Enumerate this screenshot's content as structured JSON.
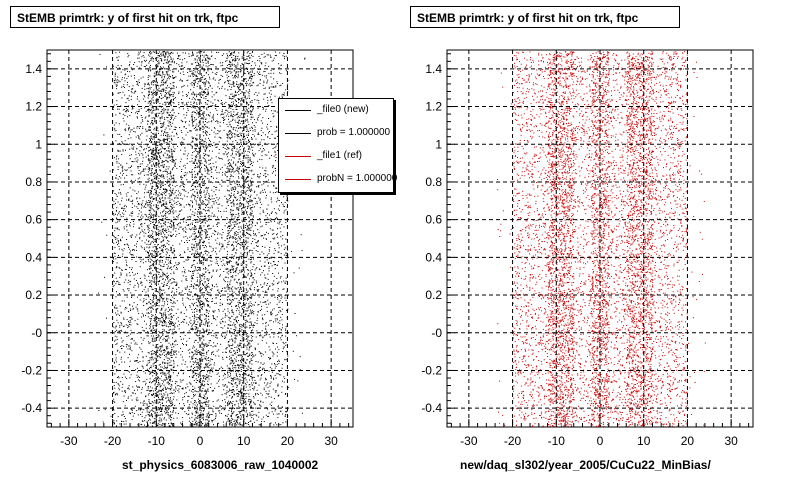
{
  "panels": {
    "left": {
      "title": "StEMB primtrk: y of first hit on trk, ftpc",
      "xlabel": "st_physics_6083006_raw_1040002",
      "color": "#000000"
    },
    "right": {
      "title": "StEMB primtrk: y of first hit on trk, ftpc",
      "xlabel": "new/daq_sl302/year_2005/CuCu22_MinBias/",
      "color": "#cc0000"
    }
  },
  "legend": {
    "entries": [
      {
        "label": "_file0 (new)",
        "color": "#000000"
      },
      {
        "label": "prob = 1.000000",
        "color": "#000000"
      },
      {
        "label": "_file1 (ref)",
        "color": "#cc0000"
      },
      {
        "label": "probN = 1.000000",
        "color": "#cc0000"
      }
    ]
  },
  "footer_note": "",
  "chart_data": [
    {
      "type": "scatter",
      "title": "StEMB primtrk: y of first hit on trk, ftpc",
      "xlabel": "st_physics_6083006_raw_1040002",
      "ylabel": "",
      "xlim": [
        -35,
        35
      ],
      "ylim": [
        -0.5,
        1.5
      ],
      "xticks": [
        -30,
        -20,
        -10,
        0,
        10,
        20,
        30
      ],
      "yticks": [
        -0.4,
        -0.2,
        0,
        0.2,
        0.4,
        0.6,
        0.8,
        1,
        1.2,
        1.4
      ],
      "ytick_labels": [
        "-0.4",
        "-0.2",
        "-0",
        "0.2",
        "0.4",
        "0.6",
        "0.8",
        "1",
        "1.2",
        "1.4"
      ],
      "grid": true,
      "series_color": "#000000",
      "x_bands": [
        [
          -20,
          20
        ],
        [
          -12,
          -6
        ],
        [
          -2,
          2
        ],
        [
          6,
          12
        ]
      ],
      "legend_position": "top-right"
    },
    {
      "type": "scatter",
      "title": "StEMB primtrk: y of first hit on trk, ftpc",
      "xlabel": "new/daq_sl302/year_2005/CuCu22_MinBias/",
      "ylabel": "",
      "xlim": [
        -35,
        35
      ],
      "ylim": [
        -0.5,
        1.5
      ],
      "xticks": [
        -30,
        -20,
        -10,
        0,
        10,
        20,
        30
      ],
      "yticks": [
        -0.4,
        -0.2,
        0,
        0.2,
        0.4,
        0.6,
        0.8,
        1,
        1.2,
        1.4
      ],
      "ytick_labels": [
        "-0.4",
        "-0.2",
        "-0",
        "0.2",
        "0.4",
        "0.6",
        "0.8",
        "1",
        "1.2",
        "1.4"
      ],
      "grid": true,
      "series_color": "#cc0000",
      "x_bands": [
        [
          -20,
          20
        ],
        [
          -12,
          -6
        ],
        [
          -2,
          2
        ],
        [
          6,
          12
        ]
      ]
    }
  ]
}
